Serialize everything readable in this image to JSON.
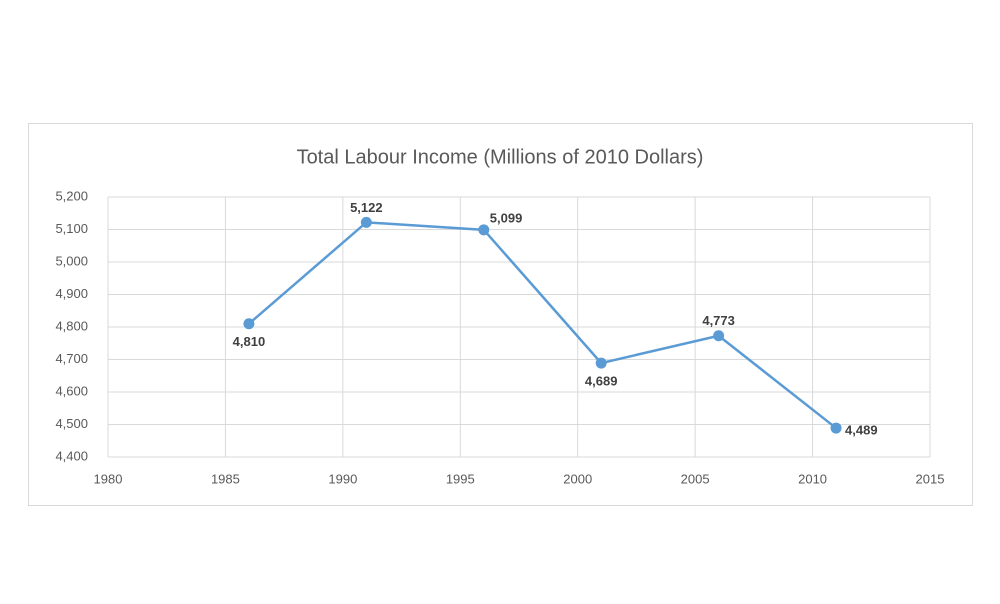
{
  "chart_data": {
    "type": "line",
    "title": "Total Labour Income (Millions of 2010 Dollars)",
    "x": [
      1986,
      1991,
      1996,
      2001,
      2006,
      2011
    ],
    "series": [
      {
        "name": "Total Labour Income",
        "color": "#5b9bd5",
        "values": [
          4810,
          5122,
          5099,
          4689,
          4773,
          4489
        ],
        "value_labels": [
          "4,810",
          "5,122",
          "5,099",
          "4,689",
          "4,773",
          "4,489"
        ]
      }
    ],
    "xlim": [
      1980,
      2015
    ],
    "xticks": [
      1980,
      1985,
      1990,
      1995,
      2000,
      2005,
      2010,
      2015
    ],
    "ylim": [
      4400,
      5200
    ],
    "yticks": [
      {
        "value": 4400,
        "label": "4,400"
      },
      {
        "value": 4500,
        "label": "4,500"
      },
      {
        "value": 4600,
        "label": "4,600"
      },
      {
        "value": 4700,
        "label": "4,700"
      },
      {
        "value": 4800,
        "label": "4,800"
      },
      {
        "value": 4900,
        "label": "4,900"
      },
      {
        "value": 5000,
        "label": "5,000"
      },
      {
        "value": 5100,
        "label": "5,100"
      },
      {
        "value": 5200,
        "label": "5,200"
      }
    ],
    "grid": true
  }
}
